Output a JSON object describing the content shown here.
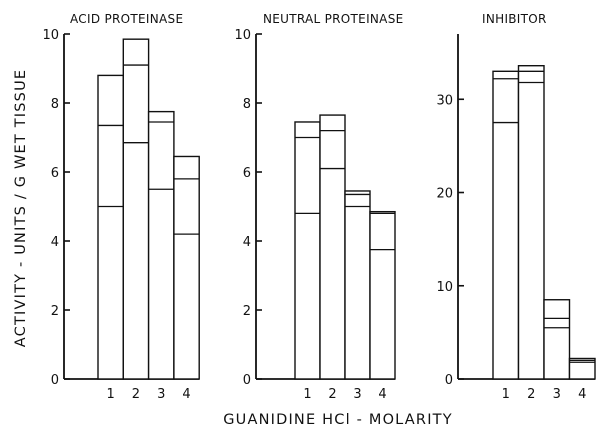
{
  "chart_data": {
    "type": "bar",
    "xlabel": "GUANIDINE HCl - MOLARITY",
    "ylabel": "ACTIVITY - UNITS / G WET TISSUE",
    "panels": [
      {
        "title": "ACID PROTEINASE",
        "categories": [
          "1",
          "2",
          "3",
          "4"
        ],
        "ylim": [
          0,
          10
        ],
        "yticks": [
          0,
          2,
          4,
          6,
          8,
          10
        ],
        "bar_segments": [
          [
            5.0,
            7.35,
            8.8
          ],
          [
            6.85,
            9.1,
            9.85
          ],
          [
            5.5,
            7.45,
            7.75
          ],
          [
            4.2,
            5.8,
            6.45
          ]
        ]
      },
      {
        "title": "NEUTRAL PROTEINASE",
        "categories": [
          "1",
          "2",
          "3",
          "4"
        ],
        "ylim": [
          0,
          10
        ],
        "yticks": [
          0,
          2,
          4,
          6,
          8,
          10
        ],
        "bar_segments": [
          [
            4.8,
            7.0,
            7.45
          ],
          [
            6.1,
            7.2,
            7.65
          ],
          [
            5.0,
            5.35,
            5.45
          ],
          [
            3.75,
            4.8,
            4.85
          ]
        ]
      },
      {
        "title": "INHIBITOR",
        "categories": [
          "1",
          "2",
          "3",
          "4"
        ],
        "ylim": [
          0,
          37
        ],
        "yticks": [
          0,
          10,
          20,
          30
        ],
        "bar_segments": [
          [
            27.5,
            32.2,
            33.0
          ],
          [
            31.8,
            33.0,
            33.6
          ],
          [
            5.5,
            6.5,
            8.5
          ],
          [
            1.8,
            2.0,
            2.2
          ]
        ]
      }
    ]
  }
}
